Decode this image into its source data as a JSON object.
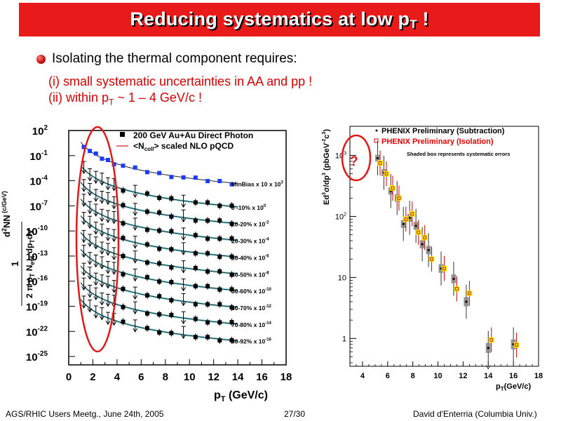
{
  "title": {
    "main": "Reducing systematics at low p",
    "sub": "T",
    "tail": " !"
  },
  "bullet": {
    "text": "Isolating the thermal component requires:"
  },
  "lines": [
    {
      "text": "(i) small systematic uncertainties in AA and pp !"
    },
    {
      "pre": "(ii) within p",
      "sub": "T",
      "post": " ~ 1 – 4 GeV/c !"
    }
  ],
  "footer": {
    "left": "AGS/RHIC Users Meetg., June 24th, 2005",
    "center": "27/30",
    "right": "David d'Enterria (Columbia Univ.)"
  },
  "colors": {
    "title_bg": "#e81a1a",
    "accent": "#d40000",
    "minbias": "#1a3cff",
    "band": "#22c8d8",
    "isolation": "#ffee00"
  },
  "chart_data": [
    {
      "type": "scatter",
      "xlim": [
        0,
        18
      ],
      "log_y": true,
      "ylim_exp": [
        -26,
        2
      ],
      "x_ticks": [
        "0",
        "2",
        "4",
        "6",
        "8",
        "10",
        "12",
        "14",
        "16",
        "18"
      ],
      "y_tick_exps": [
        "2",
        "-1",
        "-4",
        "-7",
        "-10",
        "-13",
        "-16",
        "-19",
        "-22",
        "-25"
      ],
      "xlabel": {
        "pre": "p",
        "sub": "T",
        "post": " (GeV/c)"
      },
      "ylabel_parts": [
        "1",
        "2 π p",
        "T",
        " N",
        "evt",
        " dp",
        "T",
        "dy",
        "d",
        "2",
        "N",
        " (c/GeV)",
        "2"
      ],
      "legend": [
        {
          "marker": "square",
          "label": "200 GeV Au+Au Direct Photon"
        },
        {
          "marker": "line",
          "label_pre": "<N",
          "label_sub": "coll",
          "label_post": "> scaled NLO pQCD"
        }
      ],
      "series": [
        {
          "name": "MinBias x 10",
          "exp": "3",
          "a": 0.6
        },
        {
          "name": "0 -10%",
          "exp": "0",
          "a": -2.2
        },
        {
          "name": "10-20%",
          "exp": "-2",
          "a": -4.2
        },
        {
          "name": "20-30%",
          "exp": "-4",
          "a": -6.2
        },
        {
          "name": "30-40%",
          "exp": "-6",
          "a": -8.2
        },
        {
          "name": "40-50%",
          "exp": "-8",
          "a": -10.2
        },
        {
          "name": "50-60%",
          "exp": "-10",
          "a": -12.2
        },
        {
          "name": "60-70%",
          "exp": "-12",
          "a": -14.2
        },
        {
          "name": "70-80%",
          "exp": "-14",
          "a": -16.2
        },
        {
          "name": "80-92%",
          "exp": "-16",
          "a": -18.2
        }
      ],
      "x_points": [
        1.25,
        1.75,
        2.25,
        2.75,
        3.25,
        3.75,
        4.5,
        5.5,
        6.5,
        7.5,
        8.5,
        9.5,
        10.5,
        11.5,
        12.5,
        13.5
      ],
      "upper_limit_below_x": 4.0
    },
    {
      "type": "scatter",
      "xlim": [
        3,
        18
      ],
      "log_y": true,
      "ylim": [
        0.35,
        3000
      ],
      "x_ticks": [
        "4",
        "6",
        "8",
        "10",
        "12",
        "14",
        "16",
        "18"
      ],
      "y_ticks": [
        {
          "v": 1000,
          "label": "10",
          "exp": "3"
        },
        {
          "v": 100,
          "label": "10",
          "exp": "2"
        },
        {
          "v": 10,
          "label": "10",
          "exp": ""
        },
        {
          "v": 1,
          "label": "1",
          "exp": ""
        }
      ],
      "xlabel": {
        "pre": "p",
        "sub": "T",
        "post": "(GeV/c)"
      },
      "ylabel": {
        "a": "Ed",
        "a_sup": "3",
        "b": "σ/dp",
        "b_sup": "3",
        "c": " (pbGeV",
        "c_sup": "-2",
        "d": "c",
        "d_sup": "3",
        "e": ")"
      },
      "legend": [
        {
          "label": "PHENIX Preliminary (Subtraction)"
        },
        {
          "label": "PHENIX Preliminary (Isolation)"
        },
        {
          "label": "Shaded box represents systematic errors"
        }
      ],
      "annotation": "?",
      "series": [
        {
          "name": "Subtraction",
          "points": [
            [
              5.2,
              900
            ],
            [
              5.7,
              520
            ],
            [
              6.25,
              260
            ],
            [
              6.75,
              200
            ],
            [
              7.25,
              75
            ],
            [
              7.75,
              95
            ],
            [
              8.25,
              70
            ],
            [
              8.75,
              35
            ],
            [
              9.25,
              28
            ],
            [
              10.25,
              14
            ],
            [
              11.25,
              9.5
            ],
            [
              12.25,
              4
            ],
            [
              14.0,
              0.7
            ],
            [
              16.0,
              0.8
            ]
          ]
        },
        {
          "name": "Isolation",
          "points": [
            [
              5.4,
              750
            ],
            [
              5.9,
              500
            ],
            [
              6.4,
              290
            ],
            [
              6.9,
              200
            ],
            [
              7.45,
              90
            ],
            [
              7.95,
              110
            ],
            [
              8.45,
              55
            ],
            [
              8.95,
              45
            ],
            [
              9.5,
              20
            ],
            [
              10.5,
              14
            ],
            [
              11.5,
              6.5
            ],
            [
              12.5,
              5.5
            ],
            [
              14.25,
              0.95
            ],
            [
              16.25,
              0.78
            ]
          ]
        }
      ]
    }
  ]
}
